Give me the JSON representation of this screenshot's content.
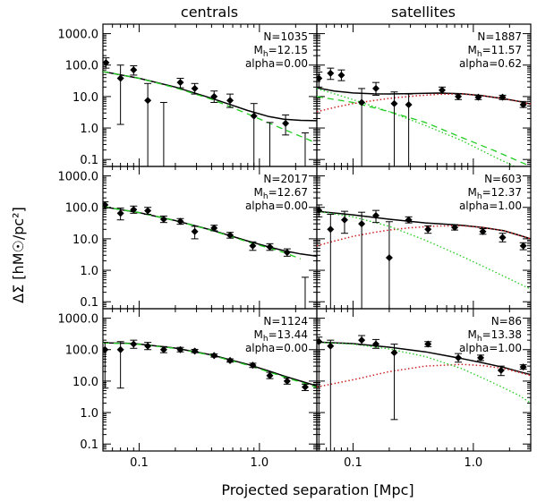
{
  "figure": {
    "column_titles": [
      "centrals",
      "satellites"
    ],
    "xlabel": "Projected separation [Mpc]",
    "ylabel": "ΔΣ [hM☉/pc²]"
  },
  "chart_data": {
    "type": "scatter",
    "layout": "3 rows x 2 columns, shared axes",
    "xscale": "log",
    "yscale": "log",
    "xlim": [
      0.05,
      3.0
    ],
    "ylim": [
      0.06,
      2000
    ],
    "x_ticks": [
      {
        "value": 0.1,
        "label": "0.1"
      },
      {
        "value": 1.0,
        "label": "1.0"
      }
    ],
    "y_ticks": [
      {
        "value": 0.1,
        "label": "0.1"
      },
      {
        "value": 1.0,
        "label": "1.0"
      },
      {
        "value": 10,
        "label": "10.0"
      },
      {
        "value": 100,
        "label": "100.0"
      },
      {
        "value": 1000,
        "label": "1000.0"
      }
    ],
    "panels": [
      {
        "row": 0,
        "col": 0,
        "annotation": {
          "n": "N=1035",
          "mh_sym": "M",
          "mh_sub": "h",
          "mh_val": "=12.15",
          "alpha": "alpha=0.00"
        },
        "points": [
          {
            "x": 0.053,
            "y": 120,
            "lo": 80,
            "hi": 170
          },
          {
            "x": 0.07,
            "y": 38,
            "lo": 1.3,
            "hi": 100
          },
          {
            "x": 0.09,
            "y": 70,
            "lo": 48,
            "hi": 95
          },
          {
            "x": 0.118,
            "y": 7.5,
            "lo": 0.06,
            "hi": 26
          },
          {
            "x": 0.22,
            "y": 28,
            "lo": 19,
            "hi": 38
          },
          {
            "x": 0.29,
            "y": 18,
            "lo": 12,
            "hi": 26
          },
          {
            "x": 0.42,
            "y": 10,
            "lo": 6.5,
            "hi": 15
          },
          {
            "x": 0.57,
            "y": 7.5,
            "lo": 4.5,
            "hi": 12
          },
          {
            "x": 0.9,
            "y": 2.4,
            "lo": 0.06,
            "hi": 6
          },
          {
            "x": 1.65,
            "y": 1.4,
            "lo": 0.6,
            "hi": 2.6
          }
        ],
        "bare_error_bars": [
          {
            "x": 0.16,
            "lo": 0.06,
            "hi": 6.5
          },
          {
            "x": 1.22,
            "lo": 0.06,
            "hi": 1.5
          },
          {
            "x": 2.4,
            "lo": 0.06,
            "hi": 0.7
          }
        ],
        "curves": [
          {
            "name": "total",
            "style": "solid-black",
            "x": [
              0.05,
              0.1,
              0.2,
              0.4,
              0.8,
              1.2,
              1.6,
              2.2,
              3.0
            ],
            "y": [
              62,
              38,
              20,
              8.8,
              3.6,
              2.3,
              1.9,
              1.75,
              1.7
            ]
          },
          {
            "name": "central",
            "style": "dashed-green",
            "x": [
              0.05,
              0.1,
              0.2,
              0.4,
              0.8,
              1.5,
              3.0
            ],
            "y": [
              62,
              38,
              19,
              8.2,
              2.8,
              1.0,
              0.33
            ]
          }
        ]
      },
      {
        "row": 0,
        "col": 1,
        "annotation": {
          "n": "N=1887",
          "mh_sym": "M",
          "mh_sub": "h",
          "mh_val": "=11.57",
          "alpha": "alpha=0.62"
        },
        "points": [
          {
            "x": 0.052,
            "y": 38,
            "lo": 20,
            "hi": 60
          },
          {
            "x": 0.065,
            "y": 55,
            "lo": 35,
            "hi": 80
          },
          {
            "x": 0.08,
            "y": 48,
            "lo": 32,
            "hi": 70
          },
          {
            "x": 0.118,
            "y": 6.5,
            "lo": 0.06,
            "hi": 18
          },
          {
            "x": 0.155,
            "y": 18,
            "lo": 11,
            "hi": 28
          },
          {
            "x": 0.22,
            "y": 6,
            "lo": 0.06,
            "hi": 14
          },
          {
            "x": 0.29,
            "y": 5.5,
            "lo": 0.06,
            "hi": 12
          },
          {
            "x": 0.55,
            "y": 16,
            "lo": 13,
            "hi": 20
          },
          {
            "x": 0.75,
            "y": 10,
            "lo": 8,
            "hi": 12
          },
          {
            "x": 1.1,
            "y": 9.5,
            "lo": 8,
            "hi": 11
          },
          {
            "x": 1.75,
            "y": 9.5,
            "lo": 8,
            "hi": 11
          },
          {
            "x": 2.6,
            "y": 5.5,
            "lo": 4.5,
            "hi": 7
          }
        ],
        "bare_error_bars": [],
        "curves": [
          {
            "name": "total",
            "style": "solid-black",
            "x": [
              0.05,
              0.07,
              0.1,
              0.15,
              0.2,
              0.3,
              0.5,
              0.8,
              1.2,
              1.8,
              2.4,
              3.0
            ],
            "y": [
              19,
              15,
              13,
              12.2,
              12.1,
              12.4,
              12.9,
              12.3,
              10.6,
              8.5,
              7,
              5.8
            ]
          },
          {
            "name": "satellite",
            "style": "dotted-red",
            "x": [
              0.05,
              0.07,
              0.1,
              0.15,
              0.2,
              0.3,
              0.5,
              0.8,
              1.2,
              1.8,
              2.4,
              3.0
            ],
            "y": [
              3.3,
              4.5,
              6,
              7.5,
              8.7,
              10.2,
              11.8,
              12.1,
              10.7,
              8.5,
              7,
              5.7
            ]
          },
          {
            "name": "central",
            "style": "dashed-green",
            "x": [
              0.05,
              0.1,
              0.2,
              0.4,
              0.8,
              1.5,
              3.0
            ],
            "y": [
              10,
              6.5,
              3.3,
              1.5,
              0.5,
              0.19,
              0.06
            ]
          },
          {
            "name": "central-1h",
            "style": "dotted-green",
            "x": [
              0.05,
              0.1,
              0.2,
              0.4,
              0.8,
              1.5,
              2.2
            ],
            "y": [
              18,
              8,
              3.3,
              1.2,
              0.4,
              0.12,
              0.06
            ]
          }
        ]
      },
      {
        "row": 1,
        "col": 0,
        "annotation": {
          "n": "N=2017",
          "mh_sym": "M",
          "mh_sub": "h",
          "mh_val": "=12.67",
          "alpha": "alpha=0.00"
        },
        "points": [
          {
            "x": 0.052,
            "y": 120,
            "lo": 95,
            "hi": 150
          },
          {
            "x": 0.07,
            "y": 65,
            "lo": 40,
            "hi": 95
          },
          {
            "x": 0.09,
            "y": 85,
            "lo": 65,
            "hi": 110
          },
          {
            "x": 0.118,
            "y": 78,
            "lo": 60,
            "hi": 100
          },
          {
            "x": 0.16,
            "y": 42,
            "lo": 33,
            "hi": 53
          },
          {
            "x": 0.22,
            "y": 36,
            "lo": 29,
            "hi": 44
          },
          {
            "x": 0.29,
            "y": 17,
            "lo": 10,
            "hi": 25
          },
          {
            "x": 0.42,
            "y": 22,
            "lo": 18,
            "hi": 27
          },
          {
            "x": 0.57,
            "y": 13,
            "lo": 10.5,
            "hi": 16
          },
          {
            "x": 0.88,
            "y": 6,
            "lo": 4.3,
            "hi": 8
          },
          {
            "x": 1.22,
            "y": 5.5,
            "lo": 4.3,
            "hi": 7
          },
          {
            "x": 1.7,
            "y": 3.7,
            "lo": 2.8,
            "hi": 4.8
          }
        ],
        "bare_error_bars": [
          {
            "x": 2.4,
            "lo": 0.06,
            "hi": 0.6
          }
        ],
        "curves": [
          {
            "name": "total",
            "style": "solid-black",
            "x": [
              0.05,
              0.1,
              0.2,
              0.4,
              0.8,
              1.2,
              1.6,
              2.2,
              3.0
            ],
            "y": [
              105,
              68,
              38,
              19,
              8.5,
              5.5,
              4.2,
              3.3,
              2.8
            ]
          },
          {
            "name": "central",
            "style": "dashed-green",
            "x": [
              0.05,
              0.1,
              0.2,
              0.4,
              0.8,
              1.6,
              2.2
            ],
            "y": [
              105,
              68,
              38,
              18.5,
              8,
              3.7,
              2.3
            ]
          }
        ]
      },
      {
        "row": 1,
        "col": 1,
        "annotation": {
          "n": "N=603",
          "mh_sym": "M",
          "mh_sub": "h",
          "mh_val": "=12.37",
          "alpha": "alpha=1.00"
        },
        "points": [
          {
            "x": 0.052,
            "y": 80,
            "lo": 50,
            "hi": 120
          },
          {
            "x": 0.065,
            "y": 20,
            "lo": 0.06,
            "hi": 60
          },
          {
            "x": 0.085,
            "y": 40,
            "lo": 15,
            "hi": 75
          },
          {
            "x": 0.118,
            "y": 30,
            "lo": 0.06,
            "hi": 70
          },
          {
            "x": 0.155,
            "y": 55,
            "lo": 33,
            "hi": 80
          },
          {
            "x": 0.2,
            "y": 2.5,
            "lo": 0.06,
            "hi": 35
          },
          {
            "x": 0.29,
            "y": 40,
            "lo": 32,
            "hi": 50
          },
          {
            "x": 0.42,
            "y": 20,
            "lo": 15,
            "hi": 26
          },
          {
            "x": 0.7,
            "y": 23,
            "lo": 19,
            "hi": 28
          },
          {
            "x": 1.2,
            "y": 17,
            "lo": 14,
            "hi": 21
          },
          {
            "x": 1.75,
            "y": 11,
            "lo": 8,
            "hi": 15
          },
          {
            "x": 2.6,
            "y": 6,
            "lo": 4.5,
            "hi": 7.5
          }
        ],
        "bare_error_bars": [],
        "curves": [
          {
            "name": "total",
            "style": "solid-black",
            "x": [
              0.05,
              0.1,
              0.2,
              0.4,
              0.8,
              1.2,
              1.8,
              2.4,
              3.0
            ],
            "y": [
              75,
              58,
              42,
              32,
              27,
              23,
              18,
              13,
              10
            ]
          },
          {
            "name": "satellite",
            "style": "dotted-red",
            "x": [
              0.05,
              0.07,
              0.1,
              0.15,
              0.2,
              0.3,
              0.5,
              0.8,
              1.2,
              1.8,
              2.4,
              3.0
            ],
            "y": [
              6,
              8.5,
              12,
              16,
              19,
              22.5,
              25.5,
              26,
              23,
              18,
              13,
              10
            ]
          },
          {
            "name": "central",
            "style": "dotted-green",
            "x": [
              0.05,
              0.1,
              0.2,
              0.4,
              0.8,
              1.5,
              3.0
            ],
            "y": [
              75,
              50,
              25,
              9,
              2.8,
              0.9,
              0.25
            ]
          }
        ]
      },
      {
        "row": 2,
        "col": 0,
        "annotation": {
          "n": "N=1124",
          "mh_sym": "M",
          "mh_sub": "h",
          "mh_val": "=13.44",
          "alpha": "alpha=0.00"
        },
        "points": [
          {
            "x": 0.052,
            "y": 100,
            "lo": 6,
            "hi": 170
          },
          {
            "x": 0.07,
            "y": 100,
            "lo": 6,
            "hi": 180
          },
          {
            "x": 0.09,
            "y": 150,
            "lo": 110,
            "hi": 200
          },
          {
            "x": 0.118,
            "y": 130,
            "lo": 100,
            "hi": 170
          },
          {
            "x": 0.16,
            "y": 100,
            "lo": 80,
            "hi": 125
          },
          {
            "x": 0.22,
            "y": 100,
            "lo": 85,
            "hi": 118
          },
          {
            "x": 0.29,
            "y": 90,
            "lo": 80,
            "hi": 102
          },
          {
            "x": 0.42,
            "y": 65,
            "lo": 58,
            "hi": 73
          },
          {
            "x": 0.57,
            "y": 45,
            "lo": 40,
            "hi": 51
          },
          {
            "x": 0.88,
            "y": 32,
            "lo": 27,
            "hi": 37
          },
          {
            "x": 1.22,
            "y": 15,
            "lo": 12,
            "hi": 19
          },
          {
            "x": 1.7,
            "y": 10,
            "lo": 8,
            "hi": 12.5
          },
          {
            "x": 2.4,
            "y": 6.5,
            "lo": 5,
            "hi": 8
          }
        ],
        "bare_error_bars": [],
        "curves": [
          {
            "name": "total",
            "style": "solid-black",
            "x": [
              0.05,
              0.08,
              0.1,
              0.2,
              0.4,
              0.8,
              1.2,
              1.6,
              2.2,
              3.0
            ],
            "y": [
              165,
              160,
              150,
              112,
              68,
              34,
              21,
              14.5,
              10,
              7
            ]
          },
          {
            "name": "central",
            "style": "dashed-green",
            "x": [
              0.05,
              0.08,
              0.1,
              0.2,
              0.4,
              0.8,
              1.2,
              1.6,
              2.2,
              3.0
            ],
            "y": [
              162,
              157,
              148,
              110,
              66,
              32,
              19.5,
              13.5,
              9.3,
              6.3
            ]
          }
        ]
      },
      {
        "row": 2,
        "col": 1,
        "annotation": {
          "n": "N=86",
          "mh_sym": "M",
          "mh_sub": "h",
          "mh_val": "=13.38",
          "alpha": "alpha=1.00"
        },
        "points": [
          {
            "x": 0.052,
            "y": 180,
            "lo": 0.06,
            "hi": 250
          },
          {
            "x": 0.065,
            "y": 130,
            "lo": 0.06,
            "hi": 200
          },
          {
            "x": 0.118,
            "y": 200,
            "lo": 145,
            "hi": 280
          },
          {
            "x": 0.155,
            "y": 150,
            "lo": 110,
            "hi": 210
          },
          {
            "x": 0.22,
            "y": 80,
            "lo": 0.6,
            "hi": 150
          },
          {
            "x": 0.42,
            "y": 150,
            "lo": 125,
            "hi": 180
          },
          {
            "x": 0.75,
            "y": 55,
            "lo": 40,
            "hi": 75
          },
          {
            "x": 1.15,
            "y": 55,
            "lo": 45,
            "hi": 67
          },
          {
            "x": 1.7,
            "y": 22,
            "lo": 15,
            "hi": 30
          },
          {
            "x": 2.6,
            "y": 28,
            "lo": 24,
            "hi": 33
          }
        ],
        "bare_error_bars": [],
        "curves": [
          {
            "name": "total",
            "style": "solid-black",
            "x": [
              0.05,
              0.1,
              0.2,
              0.4,
              0.8,
              1.2,
              1.8,
              2.4,
              3.0
            ],
            "y": [
              175,
              155,
              120,
              85,
              52,
              38,
              27,
              20,
              16
            ]
          },
          {
            "name": "satellite",
            "style": "dotted-red",
            "x": [
              0.05,
              0.1,
              0.2,
              0.4,
              0.8,
              1.2,
              1.8,
              2.4,
              3.0
            ],
            "y": [
              6.5,
              11,
              20,
              30,
              34,
              31,
              25,
              19,
              15
            ]
          },
          {
            "name": "central",
            "style": "dotted-green",
            "x": [
              0.05,
              0.1,
              0.2,
              0.4,
              0.8,
              1.2,
              1.8,
              2.4,
              3.0
            ],
            "y": [
              170,
              150,
              105,
              60,
              25,
              12.5,
              6,
              3.5,
              2
            ]
          }
        ]
      }
    ]
  },
  "colors": {
    "model_total": "#000000",
    "central_term": "#22cc22",
    "satellite_term": "#cc2222"
  }
}
